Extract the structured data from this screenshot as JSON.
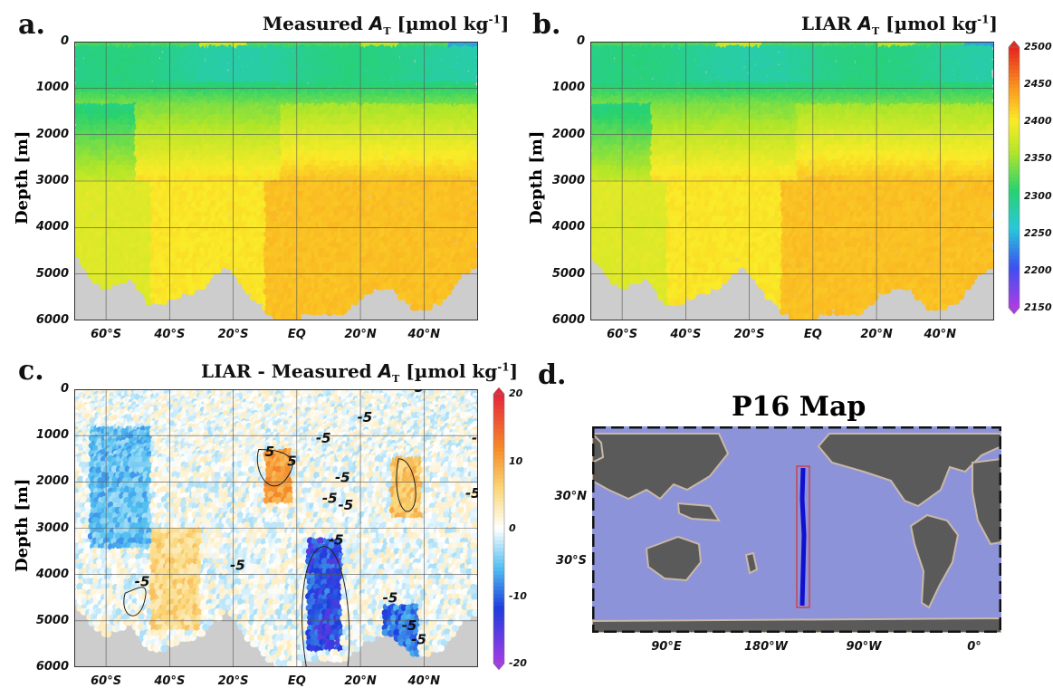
{
  "panels": {
    "a": {
      "letter": "a.",
      "title_prefix": "Measured ",
      "var": "A",
      "sub": "T",
      "title_unit": " [µmol kg",
      "sup": "-1",
      "title_end": "]"
    },
    "b": {
      "letter": "b.",
      "title_prefix": "LIAR ",
      "var": "A",
      "sub": "T",
      "title_unit": " [µmol kg",
      "sup": "-1",
      "title_end": "]"
    },
    "c": {
      "letter": "c.",
      "title_prefix": "LIAR - Measured ",
      "var": "A",
      "sub": "T",
      "title_unit": " [µmol kg",
      "sup": "-1",
      "title_end": "]"
    },
    "d": {
      "letter": "d.",
      "map_title": "P16 Map"
    }
  },
  "ylabel": "Depth [m]",
  "colors": {
    "seafloor": "#cdcdcd",
    "land": "#5a5a5a",
    "ocean": "#8c93d9",
    "track": "#1010d0",
    "track_box": "#d83030"
  },
  "chart_data": [
    {
      "type": "scatter",
      "id": "a",
      "title": "Measured AT [µmol kg-1]",
      "ylabel": "Depth [m]",
      "x_ticks": [
        "60°S",
        "40°S",
        "20°S",
        "EQ",
        "20°N",
        "40°N"
      ],
      "x_tick_values": [
        -60,
        -40,
        -20,
        0,
        20,
        40
      ],
      "y_ticks": [
        "0",
        "1000",
        "2000",
        "3000",
        "4000",
        "5000",
        "6000"
      ],
      "xlim": [
        -70,
        57
      ],
      "ylim": [
        6000,
        0
      ],
      "grid": true,
      "colorbar": "shared-right"
    },
    {
      "type": "scatter",
      "id": "b",
      "title": "LIAR AT [µmol kg-1]",
      "ylabel": "Depth [m]",
      "x_ticks": [
        "60°S",
        "40°S",
        "20°S",
        "EQ",
        "20°N",
        "40°N"
      ],
      "x_tick_values": [
        -60,
        -40,
        -20,
        0,
        20,
        40
      ],
      "y_ticks": [
        "0",
        "1000",
        "2000",
        "3000",
        "4000",
        "5000",
        "6000"
      ],
      "xlim": [
        -70,
        57
      ],
      "ylim": [
        6000,
        0
      ],
      "grid": true,
      "colorbar": {
        "ticks": [
          "2500",
          "2450",
          "2400",
          "2350",
          "2300",
          "2250",
          "2200",
          "2150"
        ],
        "range": [
          2150,
          2500
        ]
      }
    },
    {
      "type": "scatter",
      "id": "c",
      "title": "LIAR - Measured AT [µmol kg-1]",
      "ylabel": "Depth [m]",
      "x_ticks": [
        "60°S",
        "40°S",
        "20°S",
        "EQ",
        "20°N",
        "40°N"
      ],
      "x_tick_values": [
        -60,
        -40,
        -20,
        0,
        20,
        40
      ],
      "y_ticks": [
        "0",
        "1000",
        "2000",
        "3000",
        "4000",
        "5000",
        "6000"
      ],
      "xlim": [
        -70,
        57
      ],
      "ylim": [
        6000,
        0
      ],
      "grid": true,
      "colorbar": {
        "ticks": [
          "20",
          "10",
          "0",
          "-10",
          "-20"
        ],
        "range": [
          -20,
          20
        ]
      },
      "contour_labels": [
        {
          "text": "-5",
          "x": 19,
          "y": 700
        },
        {
          "text": "-5",
          "x": 6,
          "y": 1150
        },
        {
          "text": "-5",
          "x": 12,
          "y": 2000
        },
        {
          "text": "-5",
          "x": 55,
          "y": 1150
        },
        {
          "text": "-5",
          "x": 53,
          "y": 2350
        },
        {
          "text": "-5",
          "x": 8,
          "y": 2450
        },
        {
          "text": "-5",
          "x": 13,
          "y": 2600
        },
        {
          "text": "-5",
          "x": 10,
          "y": 3350
        },
        {
          "text": "-5",
          "x": -21,
          "y": 3900
        },
        {
          "text": "-5",
          "x": -51,
          "y": 4250
        },
        {
          "text": "-5",
          "x": 27,
          "y": 4600
        },
        {
          "text": "-5",
          "x": 33,
          "y": 5200
        },
        {
          "text": "-5",
          "x": 36,
          "y": 5500
        },
        {
          "text": "5",
          "x": -10,
          "y": 1450
        },
        {
          "text": "5",
          "x": -3,
          "y": 1650
        },
        {
          "text": "5",
          "x": 37,
          "y": 60
        }
      ]
    },
    {
      "type": "map",
      "id": "d",
      "title": "P16 Map",
      "x_ticks": [
        "90°E",
        "180°W",
        "90°W",
        "0°"
      ],
      "y_ticks": [
        "30°N",
        "30°S"
      ],
      "transect": "P16"
    }
  ]
}
